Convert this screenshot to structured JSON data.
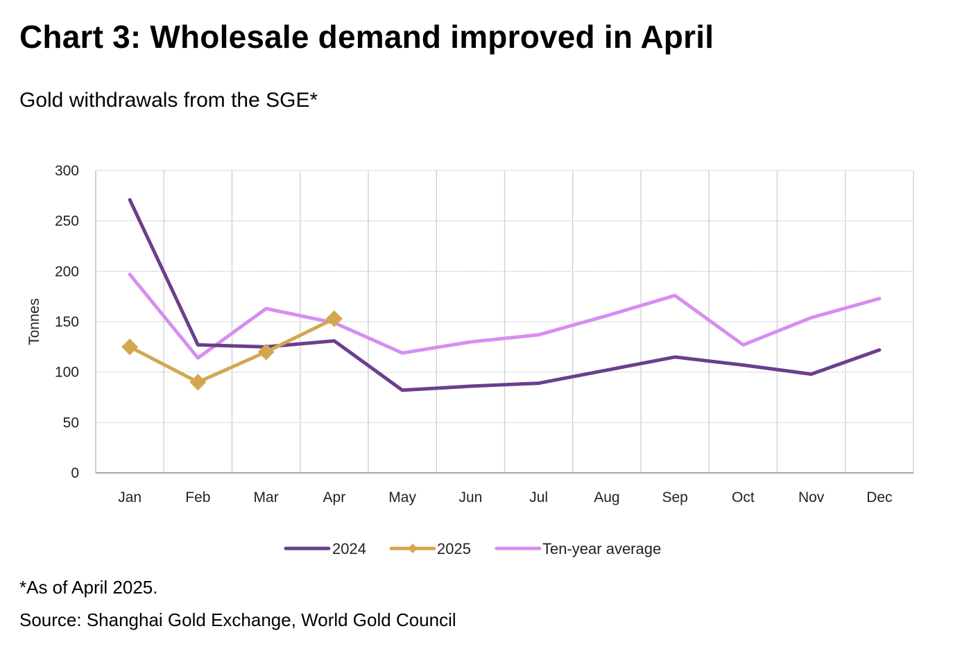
{
  "page": {
    "title": "Chart 3: Wholesale demand improved in April",
    "subtitle": "Gold withdrawals from the SGE*",
    "footnote": "*As of April 2025.",
    "source": "Source: Shanghai Gold Exchange, World Gold Council"
  },
  "chart_data": {
    "type": "line",
    "title": "Chart 3: Wholesale demand improved in April",
    "subtitle": "Gold withdrawals from the SGE*",
    "xlabel": "",
    "ylabel": "Tonnes",
    "ylim": [
      0,
      300
    ],
    "yticks": [
      0,
      50,
      100,
      150,
      200,
      250,
      300
    ],
    "grid": true,
    "legend_position": "bottom",
    "categories": [
      "Jan",
      "Feb",
      "Mar",
      "Apr",
      "May",
      "Jun",
      "Jul",
      "Aug",
      "Sep",
      "Oct",
      "Nov",
      "Dec"
    ],
    "series": [
      {
        "name": "2024",
        "color": "#6b3f8c",
        "marker": "none",
        "values": [
          271,
          127,
          125,
          131,
          82,
          86,
          89,
          102,
          115,
          107,
          98,
          122
        ]
      },
      {
        "name": "2025",
        "color": "#d4a650",
        "marker": "diamond",
        "values": [
          125,
          90,
          120,
          153,
          null,
          null,
          null,
          null,
          null,
          null,
          null,
          null
        ]
      },
      {
        "name": "Ten-year average",
        "color": "#d68ef0",
        "marker": "none",
        "values": [
          197,
          114,
          163,
          149,
          119,
          130,
          137,
          156,
          176,
          127,
          154,
          173
        ]
      }
    ]
  }
}
